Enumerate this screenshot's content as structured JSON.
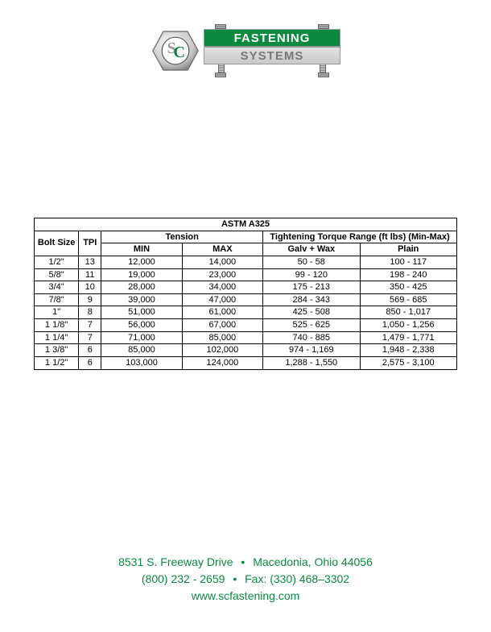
{
  "logo": {
    "line1": "FASTENING",
    "line2": "SYSTEMS",
    "brand_color": "#0a8a3f",
    "monogram_s_color": "#9a9a9a",
    "monogram_c_color": "#0a8a3f"
  },
  "table": {
    "title": "ASTM A325",
    "header_bolt_size": "Bolt Size",
    "header_tpi": "TPI",
    "header_tension": "Tension",
    "header_tension_min": "MIN",
    "header_tension_max": "MAX",
    "header_torque": "Tightening Torque  Range (ft lbs) (Min-Max)",
    "header_galv": "Galv + Wax",
    "header_plain": "Plain",
    "rows": [
      {
        "size": "1/2\"",
        "tpi": "13",
        "min": "12,000",
        "max": "14,000",
        "galv": "50 - 58",
        "plain": "100 - 117"
      },
      {
        "size": "5/8\"",
        "tpi": "11",
        "min": "19,000",
        "max": "23,000",
        "galv": "99 - 120",
        "plain": "198 - 240"
      },
      {
        "size": "3/4\"",
        "tpi": "10",
        "min": "28,000",
        "max": "34,000",
        "galv": "175 - 213",
        "plain": "350 - 425"
      },
      {
        "size": "7/8\"",
        "tpi": "9",
        "min": "39,000",
        "max": "47,000",
        "galv": "284 - 343",
        "plain": "569 - 685"
      },
      {
        "size": "1\"",
        "tpi": "8",
        "min": "51,000",
        "max": "61,000",
        "galv": "425 - 508",
        "plain": "850 - 1,017"
      },
      {
        "size": "1 1/8\"",
        "tpi": "7",
        "min": "56,000",
        "max": "67,000",
        "galv": "525 - 625",
        "plain": "1,050 - 1,256"
      },
      {
        "size": "1 1/4\"",
        "tpi": "7",
        "min": "71,000",
        "max": "85,000",
        "galv": "740 - 885",
        "plain": "1,479 - 1,771"
      },
      {
        "size": "1 3/8\"",
        "tpi": "6",
        "min": "85,000",
        "max": "102,000",
        "galv": "974 - 1,169",
        "plain": "1,948 - 2,338"
      },
      {
        "size": "1 1/2\"",
        "tpi": "6",
        "min": "103,000",
        "max": "124,000",
        "galv": "1,288 - 1,550",
        "plain": "2,575 - 3,100"
      }
    ]
  },
  "footer": {
    "address_street": "8531 S. Freeway Drive",
    "address_city": "Macedonia, Ohio 44056",
    "phone": "(800) 232 - 2659",
    "fax_label": "Fax:",
    "fax": "(330) 468–3302",
    "web": "www.scfastening.com",
    "color": "#0a8a3f"
  }
}
